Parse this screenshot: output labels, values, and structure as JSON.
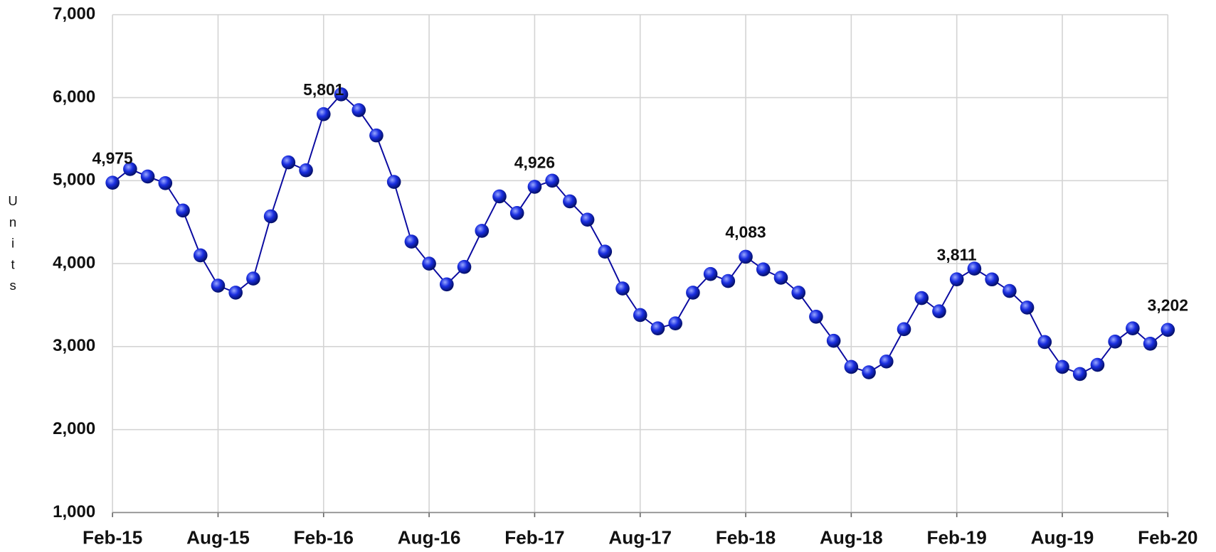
{
  "chart_data": {
    "type": "line",
    "y_label": "Units",
    "categories": [
      "Feb-15",
      null,
      null,
      null,
      null,
      null,
      "Aug-15",
      null,
      null,
      null,
      null,
      null,
      "Feb-16",
      null,
      null,
      null,
      null,
      null,
      "Aug-16",
      null,
      null,
      null,
      null,
      null,
      "Feb-17",
      null,
      null,
      null,
      null,
      null,
      "Aug-17",
      null,
      null,
      null,
      null,
      null,
      "Feb-18",
      null,
      null,
      null,
      null,
      null,
      "Aug-18",
      null,
      null,
      null,
      null,
      null,
      "Feb-19",
      null,
      null,
      null,
      null,
      null,
      "Aug-19",
      null,
      null,
      null,
      null,
      null,
      "Feb-20"
    ],
    "series": [
      {
        "name": "Units",
        "color": "#0a0aa0",
        "values": [
          4975,
          5140,
          5050,
          4970,
          4640,
          4100,
          3735,
          3650,
          3820,
          4570,
          5220,
          5125,
          5801,
          6040,
          5850,
          5545,
          4985,
          4265,
          4000,
          3750,
          3960,
          4395,
          4810,
          4610,
          4926,
          5000,
          4750,
          4530,
          4145,
          3700,
          3380,
          3220,
          3280,
          3650,
          3875,
          3790,
          4083,
          3930,
          3830,
          3650,
          3360,
          3070,
          2755,
          2690,
          2820,
          3210,
          3585,
          3425,
          3811,
          3940,
          3810,
          3670,
          3470,
          3055,
          2755,
          2670,
          2780,
          3060,
          3220,
          3035,
          3202
        ],
        "value_labels": [
          "4,975",
          null,
          null,
          null,
          null,
          null,
          null,
          null,
          null,
          null,
          null,
          null,
          "5,801",
          null,
          null,
          null,
          null,
          null,
          null,
          null,
          null,
          null,
          null,
          null,
          "4,926",
          null,
          null,
          null,
          null,
          null,
          null,
          null,
          null,
          null,
          null,
          null,
          "4,083",
          null,
          null,
          null,
          null,
          null,
          null,
          null,
          null,
          null,
          null,
          null,
          "3,811",
          null,
          null,
          null,
          null,
          null,
          null,
          null,
          null,
          null,
          null,
          null,
          "3,202"
        ]
      }
    ],
    "ylim": [
      1000,
      7000
    ],
    "yticks": [
      {
        "value": 1000,
        "label": "1,000"
      },
      {
        "value": 2000,
        "label": "2,000"
      },
      {
        "value": 3000,
        "label": "3,000"
      },
      {
        "value": 4000,
        "label": "4,000"
      },
      {
        "value": 5000,
        "label": "5,000"
      },
      {
        "value": 6000,
        "label": "6,000"
      },
      {
        "value": 7000,
        "label": "7,000"
      }
    ],
    "grid": true
  }
}
